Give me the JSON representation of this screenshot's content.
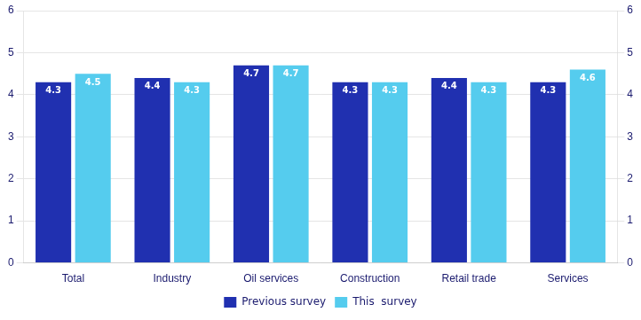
{
  "chart_data": {
    "type": "bar",
    "categories": [
      "Total",
      "Industry",
      "Oil services",
      "Construction",
      "Retail trade",
      "Services"
    ],
    "series": [
      {
        "name": "Previous survey",
        "color": "#2030B0",
        "values": [
          4.3,
          4.4,
          4.7,
          4.3,
          4.4,
          4.3
        ]
      },
      {
        "name": "This  survey",
        "color": "#55CCEE",
        "values": [
          4.5,
          4.3,
          4.7,
          4.3,
          4.3,
          4.6
        ]
      }
    ],
    "ylim": [
      0,
      6
    ],
    "yticks": [
      0,
      1,
      2,
      3,
      4,
      5,
      6
    ],
    "y2lim": [
      0,
      6
    ],
    "y2ticks": [
      0,
      1,
      2,
      3,
      4,
      5,
      6
    ],
    "grid": true,
    "legend": "bottom",
    "data_labels": true
  }
}
